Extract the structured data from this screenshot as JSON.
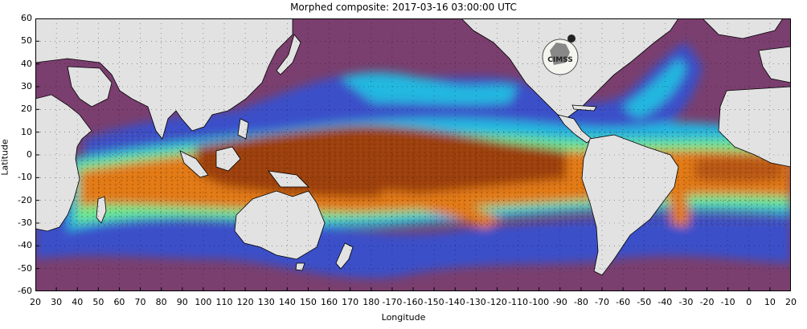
{
  "title": "Morphed composite: 2017-03-16 03:00:00 UTC",
  "axes": {
    "ylabel": "Latitude",
    "xlabel": "Longitude",
    "yticks": [
      "60",
      "50",
      "40",
      "30",
      "20",
      "10",
      "0",
      "-10",
      "-20",
      "-30",
      "-40",
      "-50",
      "-60"
    ],
    "xticks": [
      "20",
      "30",
      "40",
      "50",
      "60",
      "70",
      "80",
      "90",
      "100",
      "110",
      "120",
      "130",
      "140",
      "150",
      "160",
      "170",
      "180",
      "-170",
      "-160",
      "-150",
      "-140",
      "-130",
      "-120",
      "-110",
      "-100",
      "-90",
      "-80",
      "-70",
      "-60",
      "-50",
      "-40",
      "-30",
      "-20",
      "-10",
      "0",
      "10",
      "20"
    ]
  },
  "logo": {
    "text": "CIMSS"
  },
  "colors": {
    "land": "#e2e2e2",
    "dry": "#7a3f6e",
    "low": "#3a4fc9",
    "mid": "#23b8e0",
    "moderate": "#6bea8e",
    "moist": "#e27a18",
    "very_moist": "#9c3f10"
  }
}
